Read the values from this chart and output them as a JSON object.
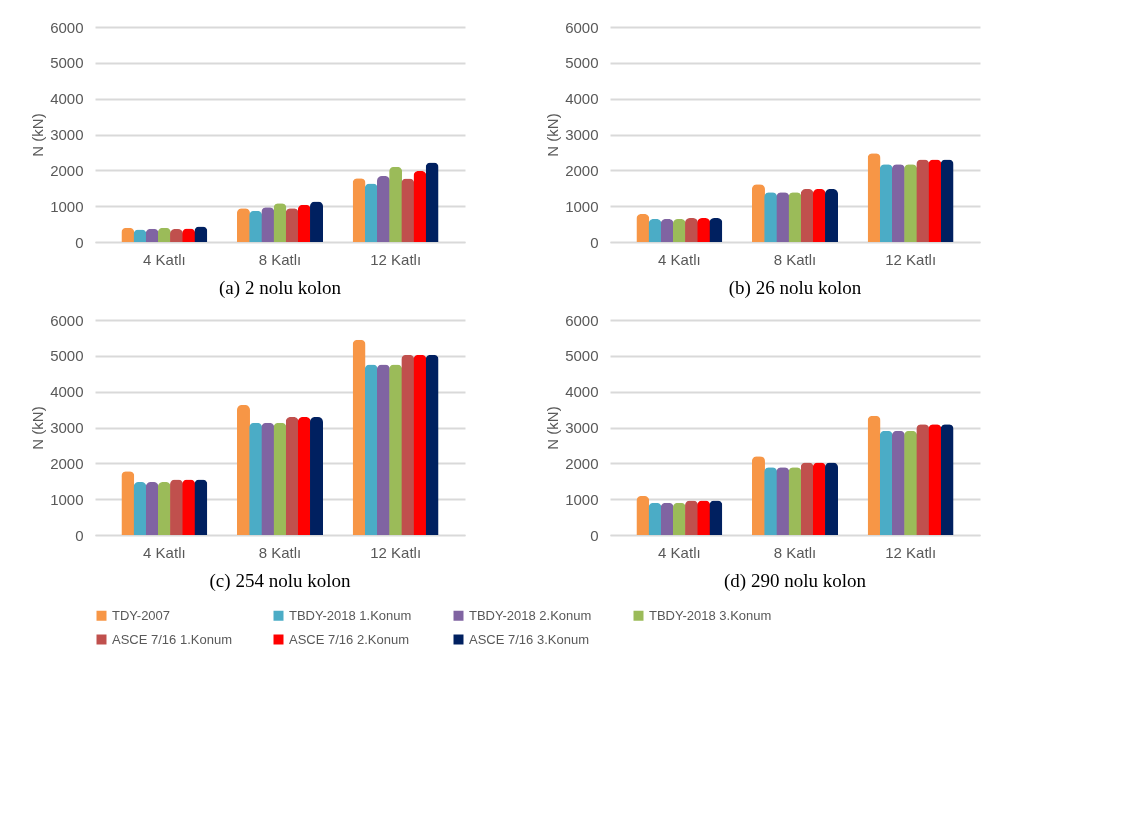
{
  "chart_data": [
    {
      "type": "bar",
      "title": "(a) 2 nolu kolon",
      "ylabel": "N (kN)",
      "categories": [
        "4 Katlı",
        "8 Katlı",
        "12 Katlı"
      ],
      "ylim": [
        0,
        6000
      ],
      "yticks": [
        0,
        1000,
        2000,
        3000,
        4000,
        5000,
        6000
      ],
      "grid": "y",
      "legend": "bottom",
      "series": [
        {
          "name": "TDY-2007",
          "color": "#f79646",
          "values": [
            400,
            940,
            1780
          ]
        },
        {
          "name": "TBDY-2018 1.Konum",
          "color": "#4bacc6",
          "values": [
            350,
            870,
            1630
          ]
        },
        {
          "name": "TBDY-2018 2.Konum",
          "color": "#8064a2",
          "values": [
            370,
            970,
            1840
          ]
        },
        {
          "name": "TBDY-2018 3.Konum",
          "color": "#9bbb59",
          "values": [
            400,
            1080,
            2100
          ]
        },
        {
          "name": "ASCE 7/16 1.Konum",
          "color": "#c0504d",
          "values": [
            360,
            940,
            1770
          ]
        },
        {
          "name": "ASCE 7/16 2.Konum",
          "color": "#ff0000",
          "values": [
            380,
            1040,
            1980
          ]
        },
        {
          "name": "ASCE 7/16 3.Konum",
          "color": "#002060",
          "values": [
            430,
            1130,
            2220
          ]
        }
      ]
    },
    {
      "type": "bar",
      "title": "(b) 26 nolu kolon",
      "ylabel": "N (kN)",
      "categories": [
        "4 Katlı",
        "8 Katlı",
        "12 Katlı"
      ],
      "ylim": [
        0,
        6000
      ],
      "yticks": [
        0,
        1000,
        2000,
        3000,
        4000,
        5000,
        6000
      ],
      "grid": "y",
      "legend": "bottom",
      "series": [
        {
          "name": "TDY-2007",
          "color": "#f79646",
          "values": [
            780,
            1610,
            2480
          ]
        },
        {
          "name": "TBDY-2018 1.Konum",
          "color": "#4bacc6",
          "values": [
            640,
            1390,
            2170
          ]
        },
        {
          "name": "TBDY-2018 2.Konum",
          "color": "#8064a2",
          "values": [
            640,
            1390,
            2170
          ]
        },
        {
          "name": "TBDY-2018 3.Konum",
          "color": "#9bbb59",
          "values": [
            640,
            1390,
            2170
          ]
        },
        {
          "name": "ASCE 7/16 1.Konum",
          "color": "#c0504d",
          "values": [
            670,
            1480,
            2300
          ]
        },
        {
          "name": "ASCE 7/16 2.Konum",
          "color": "#ff0000",
          "values": [
            670,
            1480,
            2300
          ]
        },
        {
          "name": "ASCE 7/16 3.Konum",
          "color": "#002060",
          "values": [
            670,
            1480,
            2300
          ]
        }
      ]
    },
    {
      "type": "bar",
      "title": "(c) 254 nolu kolon",
      "ylabel": "N (kN)",
      "categories": [
        "4 Katlı",
        "8 Katlı",
        "12 Katlı"
      ],
      "ylim": [
        0,
        6000
      ],
      "yticks": [
        0,
        1000,
        2000,
        3000,
        4000,
        5000,
        6000
      ],
      "grid": "y",
      "legend": "bottom",
      "series": [
        {
          "name": "TDY-2007",
          "color": "#f79646",
          "values": [
            1780,
            3630,
            5450
          ]
        },
        {
          "name": "TBDY-2018 1.Konum",
          "color": "#4bacc6",
          "values": [
            1480,
            3130,
            4760
          ]
        },
        {
          "name": "TBDY-2018 2.Konum",
          "color": "#8064a2",
          "values": [
            1480,
            3130,
            4760
          ]
        },
        {
          "name": "TBDY-2018 3.Konum",
          "color": "#9bbb59",
          "values": [
            1480,
            3130,
            4760
          ]
        },
        {
          "name": "ASCE 7/16 1.Konum",
          "color": "#c0504d",
          "values": [
            1550,
            3290,
            5030
          ]
        },
        {
          "name": "ASCE 7/16 2.Konum",
          "color": "#ff0000",
          "values": [
            1550,
            3290,
            5030
          ]
        },
        {
          "name": "ASCE 7/16 3.Konum",
          "color": "#002060",
          "values": [
            1550,
            3290,
            5030
          ]
        }
      ]
    },
    {
      "type": "bar",
      "title": "(d) 290 nolu kolon",
      "ylabel": "N (kN)",
      "categories": [
        "4 Katlı",
        "8 Katlı",
        "12 Katlı"
      ],
      "ylim": [
        0,
        6000
      ],
      "yticks": [
        0,
        1000,
        2000,
        3000,
        4000,
        5000,
        6000
      ],
      "grid": "y",
      "legend": "bottom",
      "series": [
        {
          "name": "TDY-2007",
          "color": "#f79646",
          "values": [
            1090,
            2200,
            3330
          ]
        },
        {
          "name": "TBDY-2018 1.Konum",
          "color": "#4bacc6",
          "values": [
            900,
            1890,
            2910
          ]
        },
        {
          "name": "TBDY-2018 2.Konum",
          "color": "#8064a2",
          "values": [
            900,
            1890,
            2910
          ]
        },
        {
          "name": "TBDY-2018 3.Konum",
          "color": "#9bbb59",
          "values": [
            900,
            1890,
            2910
          ]
        },
        {
          "name": "ASCE 7/16 1.Konum",
          "color": "#c0504d",
          "values": [
            960,
            2020,
            3090
          ]
        },
        {
          "name": "ASCE 7/16 2.Konum",
          "color": "#ff0000",
          "values": [
            960,
            2020,
            3090
          ]
        },
        {
          "name": "ASCE 7/16 3.Konum",
          "color": "#002060",
          "values": [
            960,
            2020,
            3090
          ]
        }
      ]
    }
  ]
}
